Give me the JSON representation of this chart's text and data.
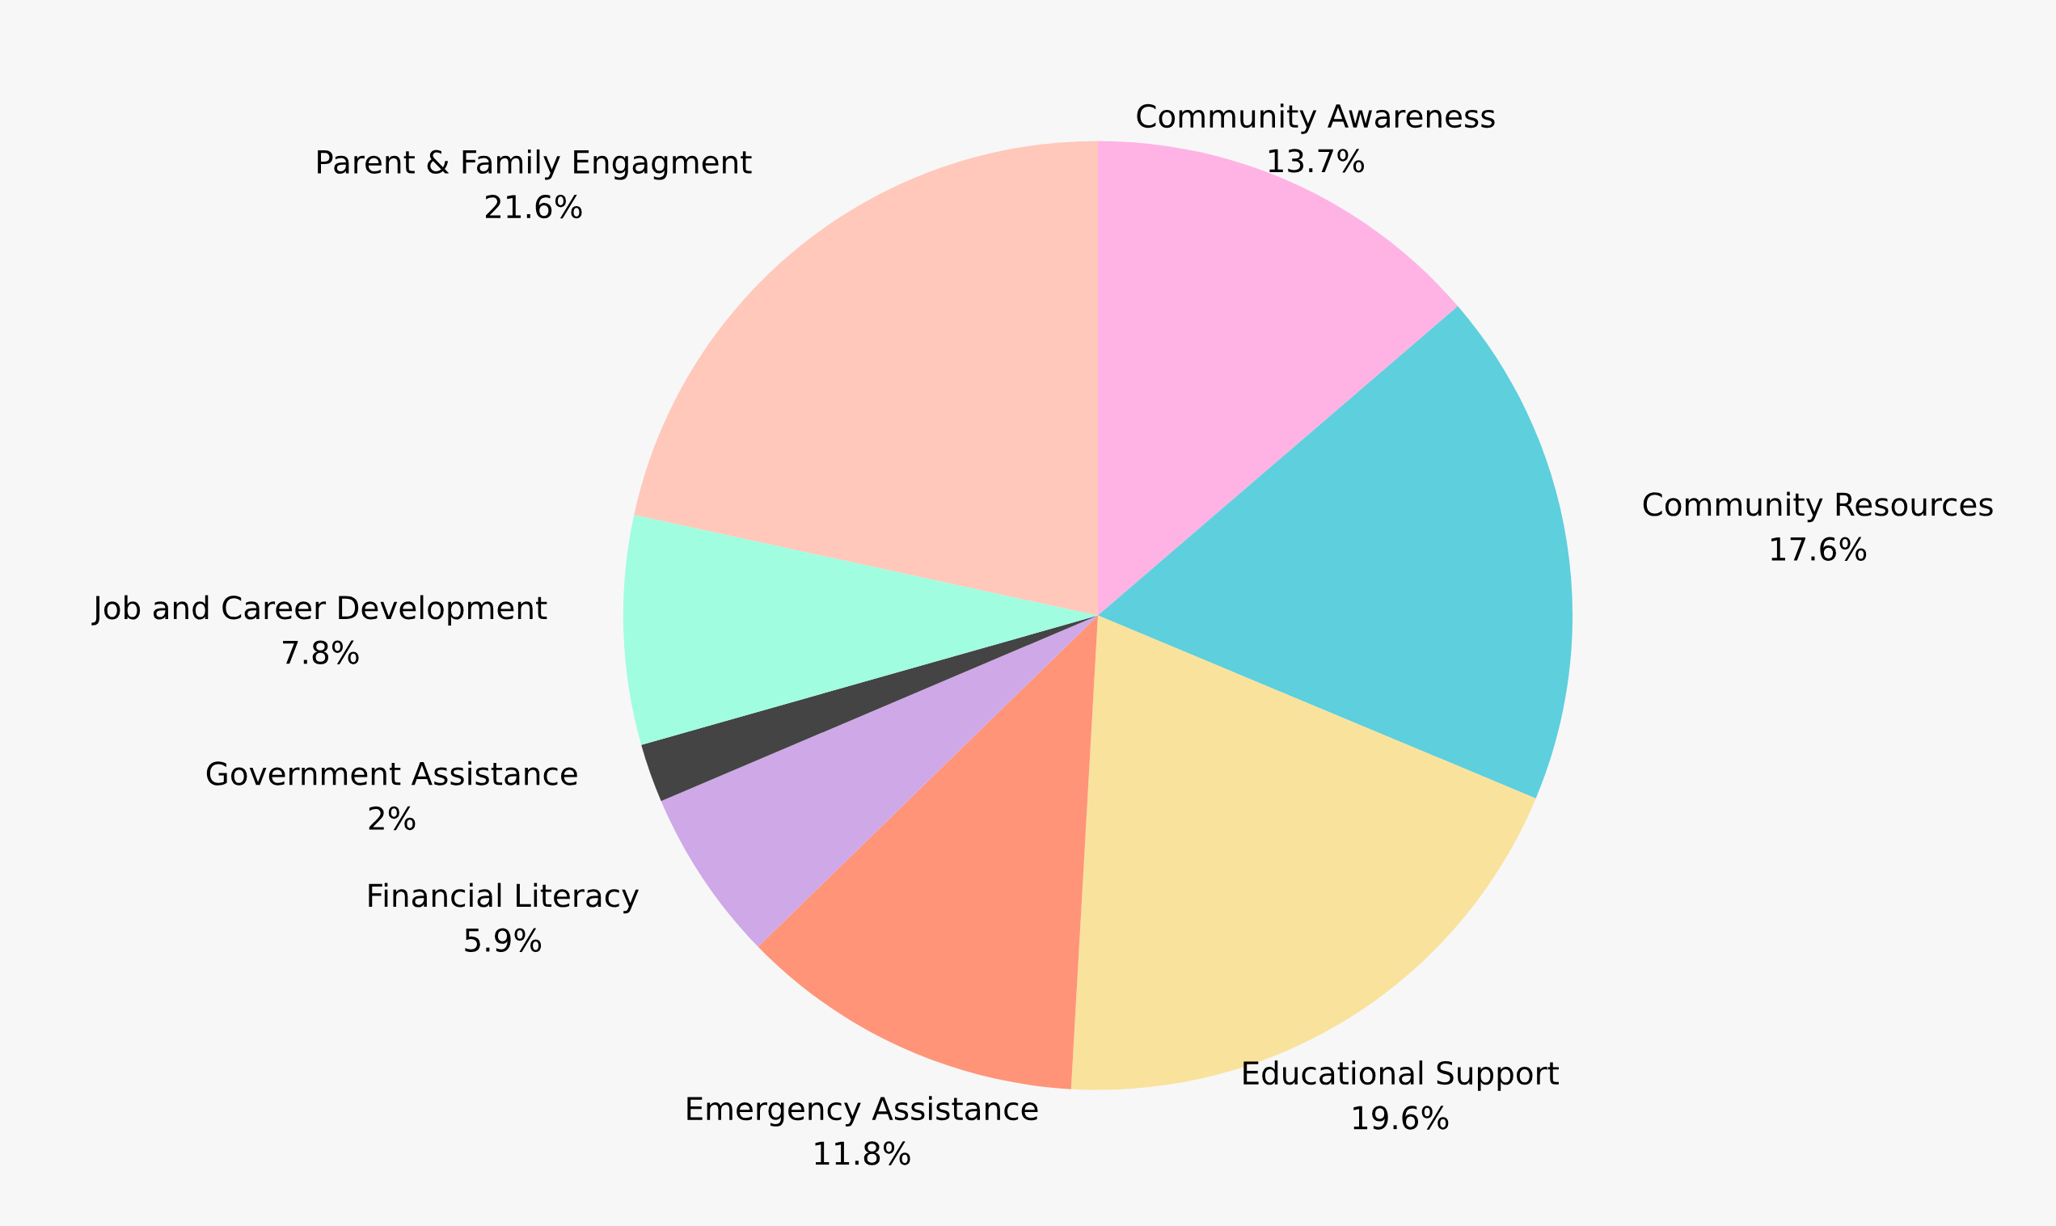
{
  "chart_data": {
    "type": "pie",
    "categories": [
      "Community Awareness",
      "Community Resources",
      "Educational Support",
      "Emergency Assistance",
      "Financial Literacy",
      "Government Assistance",
      "Job and Career Development",
      "Parent & Family Engagment"
    ],
    "values": [
      13.7,
      17.6,
      19.6,
      11.8,
      5.9,
      2,
      7.8,
      21.6
    ],
    "value_labels": [
      "13.7%",
      "17.6%",
      "19.6%",
      "11.8%",
      "5.9%",
      "2%",
      "7.8%",
      "21.6%"
    ],
    "colors": [
      "#ffb3e4",
      "#5ecfdc",
      "#f9e29c",
      "#ff9478",
      "#cfa8e8",
      "#444444",
      "#a0fde0",
      "#ffc8ba"
    ]
  }
}
